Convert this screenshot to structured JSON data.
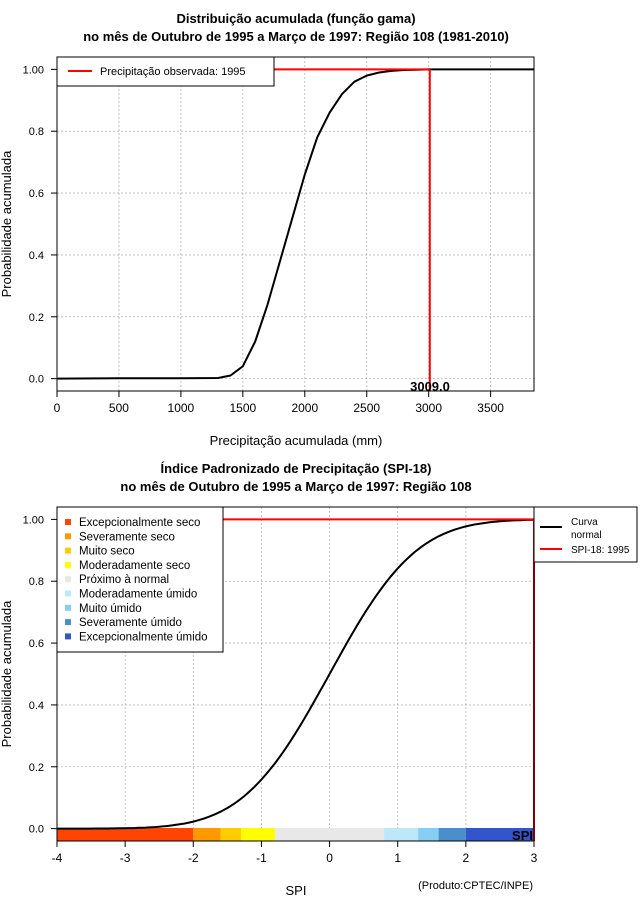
{
  "chart_data": [
    {
      "type": "line",
      "title": "Distribuição acumulada (função gama)",
      "subtitle": "no mês de Outubro de 1995 a Março de 1997: Região 108 (1981-2010)",
      "xlabel": "Precipitação acumulada (mm)",
      "ylabel": "Probabilidade acumulada",
      "xlim": [
        0,
        3850
      ],
      "ylim": [
        -0.04,
        1.04
      ],
      "xticks": [
        0,
        500,
        1000,
        1500,
        2000,
        2500,
        3000,
        3500
      ],
      "yticks": [
        0.0,
        0.2,
        0.4,
        0.6,
        0.8,
        1.0
      ],
      "ytick_labels": [
        "0.0",
        "0.2",
        "0.4",
        "0.6",
        "0.8",
        "1.00"
      ],
      "grid": true,
      "legend": {
        "position": "top-left",
        "entries": [
          {
            "label": "Precipitação observada: 1995",
            "color": "#ff0000"
          }
        ]
      },
      "series": [
        {
          "name": "Distribuição gama",
          "color": "#000000",
          "x": [
            0,
            500,
            1000,
            1300,
            1400,
            1500,
            1600,
            1700,
            1800,
            1900,
            2000,
            2100,
            2200,
            2300,
            2400,
            2500,
            2600,
            2700,
            2800,
            2900,
            3000,
            3850
          ],
          "y": [
            0.0,
            0.001,
            0.001,
            0.002,
            0.01,
            0.04,
            0.12,
            0.24,
            0.38,
            0.52,
            0.66,
            0.78,
            0.86,
            0.92,
            0.96,
            0.98,
            0.99,
            0.995,
            0.998,
            0.999,
            1.0,
            1.0
          ]
        }
      ],
      "observed_value": 3009.0,
      "observed_label": "3009.0",
      "observed_probability": 1.0
    },
    {
      "type": "line",
      "title": "Índice Padronizado de Precipitação (SPI-18)",
      "subtitle": "no mês de Outubro de 1995 a Março de 1997: Região 108",
      "xlabel": "SPI",
      "ylabel": "Probabilidade acumulada",
      "xlim": [
        -4,
        3
      ],
      "ylim": [
        -0.04,
        1.04
      ],
      "xticks": [
        -4,
        -3,
        -2,
        -1,
        0,
        1,
        2,
        3
      ],
      "yticks": [
        0.0,
        0.2,
        0.4,
        0.6,
        0.8,
        1.0
      ],
      "ytick_labels": [
        "0.0",
        "0.2",
        "0.4",
        "0.6",
        "0.8",
        "1.00"
      ],
      "grid": true,
      "category_legend": {
        "position": "top-left",
        "entries": [
          {
            "label": "Excepcionalmente seco",
            "color": "#ff4500"
          },
          {
            "label": "Severamente seco",
            "color": "#ff9900"
          },
          {
            "label": "Muito seco",
            "color": "#ffcc00"
          },
          {
            "label": "Moderadamente seco",
            "color": "#ffff00"
          },
          {
            "label": "Próximo à normal",
            "color": "#e8e8e8"
          },
          {
            "label": "Moderadamente úmido",
            "color": "#bde8f8"
          },
          {
            "label": "Muito úmido",
            "color": "#87cef5"
          },
          {
            "label": "Severamente úmido",
            "color": "#4a8fcc"
          },
          {
            "label": "Excepcionalmente úmido",
            "color": "#3355cc"
          }
        ]
      },
      "line_legend": {
        "position": "outside-right",
        "entries": [
          {
            "label": "Curva normal",
            "color": "#000000"
          },
          {
            "label": "SPI-18: 1995",
            "color": "#ff0000"
          }
        ]
      },
      "category_bands": [
        {
          "from": -4.0,
          "to": -2.0,
          "color": "#ff4500"
        },
        {
          "from": -2.0,
          "to": -1.6,
          "color": "#ff9900"
        },
        {
          "from": -1.6,
          "to": -1.3,
          "color": "#ffcc00"
        },
        {
          "from": -1.3,
          "to": -0.8,
          "color": "#ffff00"
        },
        {
          "from": -0.8,
          "to": 0.8,
          "color": "#e8e8e8"
        },
        {
          "from": 0.8,
          "to": 1.3,
          "color": "#bde8f8"
        },
        {
          "from": 1.3,
          "to": 1.6,
          "color": "#87cef5"
        },
        {
          "from": 1.6,
          "to": 2.0,
          "color": "#4a8fcc"
        },
        {
          "from": 2.0,
          "to": 3.0,
          "color": "#3355cc"
        }
      ],
      "spi_marker_label": "SPI",
      "spi_value": 3.0,
      "spi_probability": 1.0,
      "normal_curve": true,
      "footnote": "(Produto:CPTEC/INPE)"
    }
  ]
}
